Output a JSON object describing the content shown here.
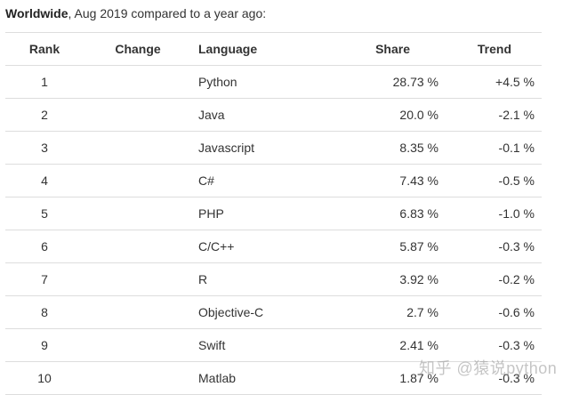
{
  "caption": {
    "bold": "Worldwide",
    "rest": ", Aug 2019 compared to a year ago:"
  },
  "table": {
    "headers": {
      "rank": "Rank",
      "change": "Change",
      "language": "Language",
      "share": "Share",
      "trend": "Trend"
    },
    "rows": [
      {
        "rank": "1",
        "change": "",
        "language": "Python",
        "share": "28.73 %",
        "trend": "+4.5 %"
      },
      {
        "rank": "2",
        "change": "",
        "language": "Java",
        "share": "20.0 %",
        "trend": "-2.1 %"
      },
      {
        "rank": "3",
        "change": "",
        "language": "Javascript",
        "share": "8.35 %",
        "trend": "-0.1 %"
      },
      {
        "rank": "4",
        "change": "",
        "language": "C#",
        "share": "7.43 %",
        "trend": "-0.5 %"
      },
      {
        "rank": "5",
        "change": "",
        "language": "PHP",
        "share": "6.83 %",
        "trend": "-1.0 %"
      },
      {
        "rank": "6",
        "change": "",
        "language": "C/C++",
        "share": "5.87 %",
        "trend": "-0.3 %"
      },
      {
        "rank": "7",
        "change": "",
        "language": "R",
        "share": "3.92 %",
        "trend": "-0.2 %"
      },
      {
        "rank": "8",
        "change": "",
        "language": "Objective-C",
        "share": "2.7 %",
        "trend": "-0.6 %"
      },
      {
        "rank": "9",
        "change": "",
        "language": "Swift",
        "share": "2.41 %",
        "trend": "-0.3 %"
      },
      {
        "rank": "10",
        "change": "",
        "language": "Matlab",
        "share": "1.87 %",
        "trend": "-0.3 %"
      }
    ]
  },
  "watermark": "知乎 @猿说python"
}
